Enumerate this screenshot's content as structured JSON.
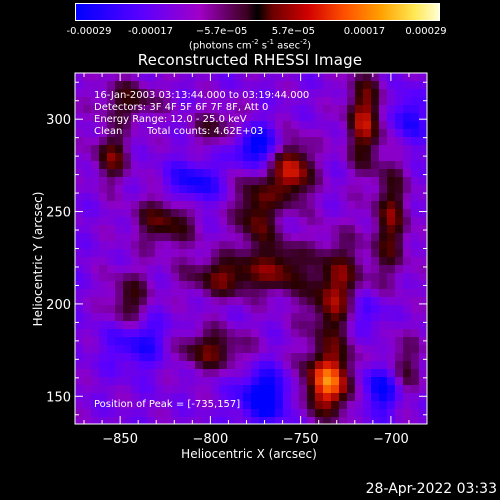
{
  "colorbar": {
    "tick_labels": [
      "-0.00029",
      "-0.00017",
      "−5.7e−05",
      "5.7e−05",
      "0.00017",
      "0.00029"
    ],
    "tick_values": [
      -0.00029,
      -0.00017,
      -5.7e-05,
      5.7e-05,
      0.00017,
      0.00029
    ],
    "unit_parts": [
      "(photons cm",
      "-2",
      " s",
      "-1",
      " asec",
      "-2",
      ")"
    ],
    "range": [
      -0.00029,
      0.00029
    ]
  },
  "annotations": {
    "time_range": "16-Jan-2003 03:13:44.000 to 03:19:44.000",
    "detectors": "Detectors: 3F 4F 5F 6F 7F 8F, Att 0",
    "energy": "Energy Range: 12.0 - 25.0 keV",
    "clean": "Clean",
    "total_counts": "Total counts: 4.62E+03",
    "peak": "Position of Peak = [-735,157]"
  },
  "timestamp": "28-Apr-2022 03:33",
  "chart_data": {
    "type": "heatmap",
    "title": "Reconstructed RHESSI Image",
    "xlabel": "Heliocentric X (arcsec)",
    "ylabel": "Heliocentric Y (arcsec)",
    "xlim": [
      -875,
      -680
    ],
    "ylim": [
      135,
      325
    ],
    "xticks": [
      -850,
      -800,
      -750,
      -700
    ],
    "yticks": [
      150,
      200,
      250,
      300
    ],
    "xtick_labels": [
      "−850",
      "−800",
      "−750",
      "−700"
    ],
    "ytick_labels": [
      "150",
      "200",
      "250",
      "300"
    ],
    "peak": [
      -735,
      157
    ],
    "features": [
      {
        "x": -735,
        "y": 157,
        "amp": 1.0,
        "sx": 10,
        "sy": 12
      },
      {
        "x": -755,
        "y": 272,
        "amp": 0.85,
        "sx": 8,
        "sy": 12
      },
      {
        "x": -730,
        "y": 205,
        "amp": 0.7,
        "sx": 12,
        "sy": 20
      },
      {
        "x": -715,
        "y": 300,
        "amp": 0.7,
        "sx": 7,
        "sy": 18
      },
      {
        "x": -700,
        "y": 245,
        "amp": 0.55,
        "sx": 7,
        "sy": 22
      },
      {
        "x": -790,
        "y": 215,
        "amp": 0.6,
        "sx": 16,
        "sy": 8
      },
      {
        "x": -775,
        "y": 250,
        "amp": 0.6,
        "sx": 8,
        "sy": 16
      },
      {
        "x": -825,
        "y": 245,
        "amp": 0.55,
        "sx": 12,
        "sy": 10
      },
      {
        "x": -855,
        "y": 280,
        "amp": 0.55,
        "sx": 7,
        "sy": 10
      },
      {
        "x": -845,
        "y": 200,
        "amp": 0.5,
        "sx": 8,
        "sy": 12
      },
      {
        "x": -800,
        "y": 175,
        "amp": 0.55,
        "sx": 14,
        "sy": 8
      },
      {
        "x": -845,
        "y": 310,
        "amp": 0.45,
        "sx": 12,
        "sy": 8
      },
      {
        "x": -795,
        "y": 295,
        "amp": 0.4,
        "sx": 10,
        "sy": 8
      },
      {
        "x": -760,
        "y": 220,
        "amp": 0.5,
        "sx": 8,
        "sy": 10
      },
      {
        "x": -695,
        "y": 165,
        "amp": 0.45,
        "sx": 8,
        "sy": 12
      },
      {
        "x": -770,
        "y": 150,
        "amp": -0.75,
        "sx": 10,
        "sy": 10
      },
      {
        "x": -705,
        "y": 155,
        "amp": -0.7,
        "sx": 8,
        "sy": 10
      },
      {
        "x": -775,
        "y": 285,
        "amp": -0.7,
        "sx": 10,
        "sy": 8
      },
      {
        "x": -810,
        "y": 265,
        "amp": -0.55,
        "sx": 10,
        "sy": 8
      },
      {
        "x": -840,
        "y": 180,
        "amp": -0.5,
        "sx": 12,
        "sy": 10
      },
      {
        "x": -715,
        "y": 195,
        "amp": -0.5,
        "sx": 8,
        "sy": 10
      },
      {
        "x": -690,
        "y": 300,
        "amp": -0.5,
        "sx": 6,
        "sy": 10
      }
    ]
  }
}
